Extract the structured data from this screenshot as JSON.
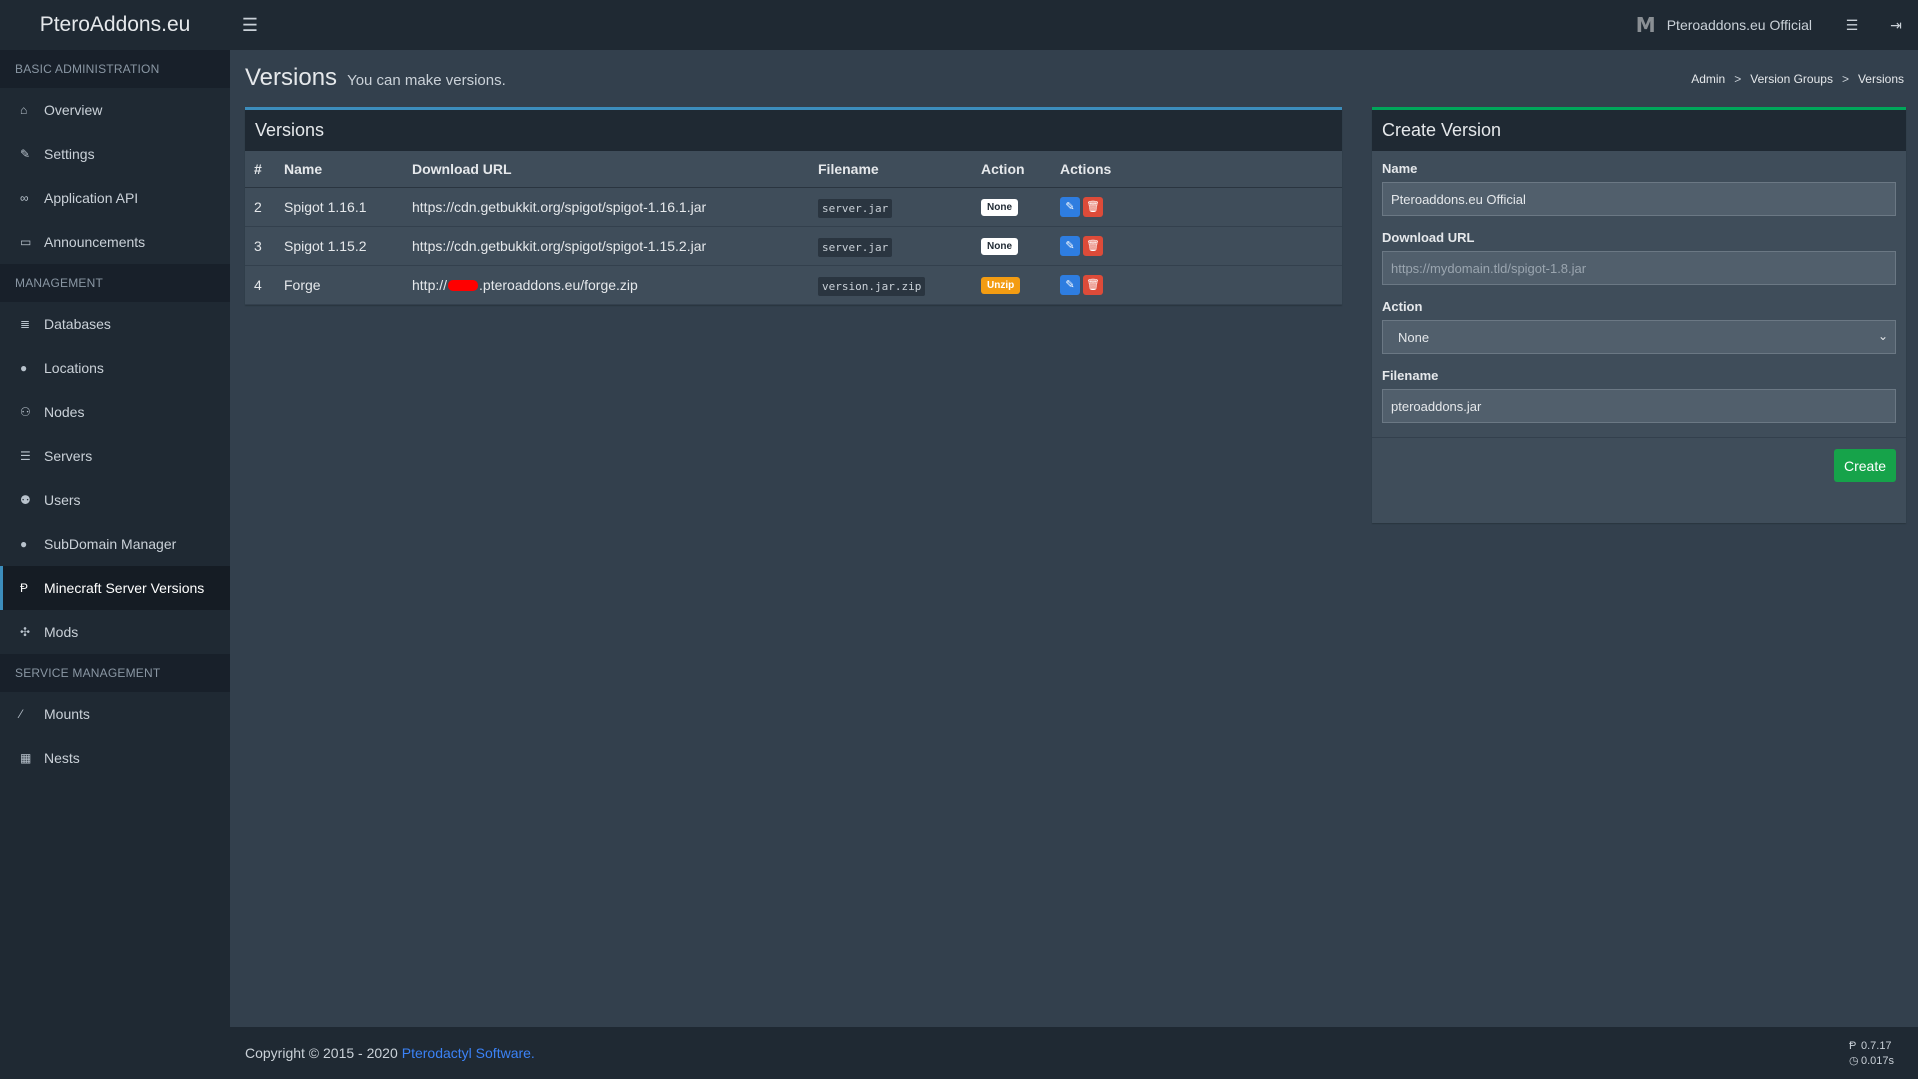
{
  "app": {
    "brand": "PteroAddons.eu",
    "user_name": "Pteroaddons.eu Official",
    "avatar_letter": "M"
  },
  "sidebar": {
    "sections": [
      {
        "title": "BASIC ADMINISTRATION",
        "items": [
          {
            "label": "Overview",
            "icon": "home-icon"
          },
          {
            "label": "Settings",
            "icon": "wrench-icon"
          },
          {
            "label": "Application API",
            "icon": "gamepad-icon"
          },
          {
            "label": "Announcements",
            "icon": "inbox-icon"
          }
        ]
      },
      {
        "title": "MANAGEMENT",
        "items": [
          {
            "label": "Databases",
            "icon": "database-icon"
          },
          {
            "label": "Locations",
            "icon": "globe-icon"
          },
          {
            "label": "Nodes",
            "icon": "sitemap-icon"
          },
          {
            "label": "Servers",
            "icon": "server-icon"
          },
          {
            "label": "Users",
            "icon": "users-icon"
          },
          {
            "label": "SubDomain Manager",
            "icon": "globe-icon"
          },
          {
            "label": "Minecraft Server Versions",
            "icon": "pterodactyl-icon",
            "active": true
          },
          {
            "label": "Mods",
            "icon": "puzzle-icon"
          }
        ]
      },
      {
        "title": "SERVICE MANAGEMENT",
        "items": [
          {
            "label": "Mounts",
            "icon": "magic-icon"
          },
          {
            "label": "Nests",
            "icon": "th-large-icon"
          }
        ]
      }
    ]
  },
  "header": {
    "title": "Versions",
    "subtitle": "You can make versions.",
    "breadcrumb": [
      "Admin",
      "Version Groups",
      "Versions"
    ]
  },
  "versions_table": {
    "title": "Versions",
    "columns": [
      "#",
      "Name",
      "Download URL",
      "Filename",
      "Action",
      "Actions"
    ],
    "rows": [
      {
        "id": "2",
        "name": "Spigot 1.16.1",
        "url": "https://cdn.getbukkit.org/spigot/spigot-1.16.1.jar",
        "url_prefix": "",
        "url_suffix": "",
        "redacted": false,
        "filename": "server.jar",
        "action": "None",
        "action_color": "#ffffff"
      },
      {
        "id": "3",
        "name": "Spigot 1.15.2",
        "url": "https://cdn.getbukkit.org/spigot/spigot-1.15.2.jar",
        "url_prefix": "",
        "url_suffix": "",
        "redacted": false,
        "filename": "server.jar",
        "action": "None",
        "action_color": "#ffffff"
      },
      {
        "id": "4",
        "name": "Forge",
        "url": "",
        "url_prefix": "http://",
        "url_suffix": ".pteroaddons.eu/forge.zip",
        "redacted": true,
        "filename": "version.jar.zip",
        "action": "Unzip",
        "action_color": "#f39c12"
      }
    ]
  },
  "create_form": {
    "title": "Create Version",
    "name_label": "Name",
    "name_value": "Pteroaddons.eu Official",
    "url_label": "Download URL",
    "url_placeholder": "https://mydomain.tld/spigot-1.8.jar",
    "action_label": "Action",
    "action_value": "None",
    "filename_label": "Filename",
    "filename_value": "pteroaddons.jar",
    "submit_label": "Create"
  },
  "footer": {
    "copyright": "Copyright © 2015 - 2020",
    "link_text": "Pterodactyl Software.",
    "version": "0.7.17",
    "time": "0.017s"
  },
  "colors": {
    "accent": "#3c8dbc",
    "success": "#00a65a",
    "danger": "#dd4b39",
    "warning": "#f39c12"
  }
}
